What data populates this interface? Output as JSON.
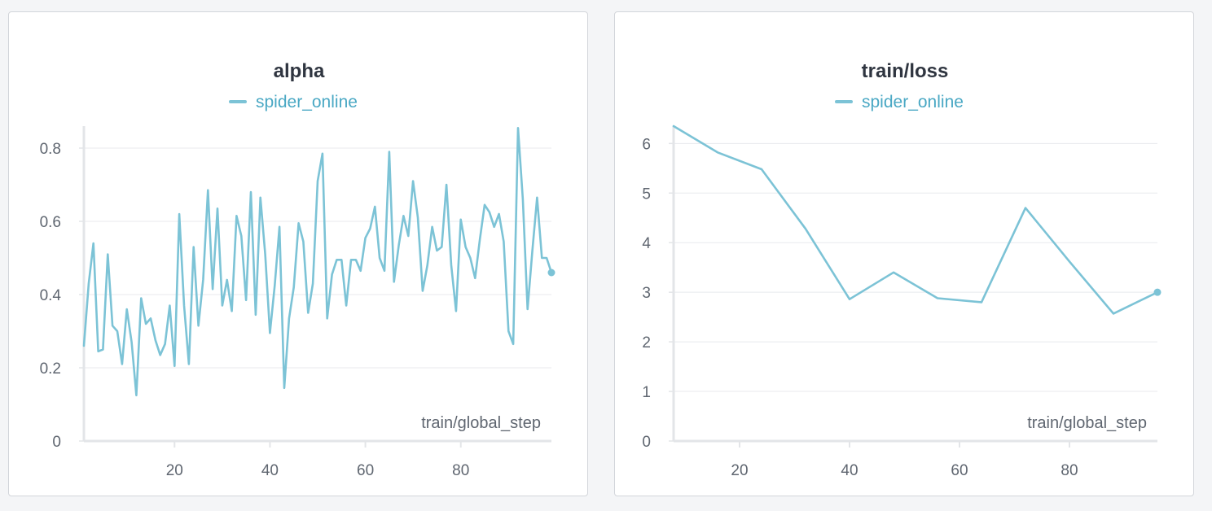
{
  "colors": {
    "series": "#7cc3d6",
    "grid": "#e8eaed",
    "axis": "#e3e5e8",
    "legend_text": "#4aa8c4"
  },
  "chart_data": [
    {
      "type": "line",
      "title": "alpha",
      "xlabel": "train/global_step",
      "ylabel": "",
      "xlim": [
        1,
        99
      ],
      "ylim": [
        0,
        0.86
      ],
      "xticks": [
        20,
        40,
        60,
        80
      ],
      "yticks": [
        0,
        0.2,
        0.4,
        0.6,
        0.8
      ],
      "ytick_labels": [
        "0",
        "0.2",
        "0.4",
        "0.6",
        "0.8"
      ],
      "grid": true,
      "legend_placement": "top-center",
      "series": [
        {
          "name": "spider_online",
          "x": [
            1,
            2,
            3,
            4,
            5,
            6,
            7,
            8,
            9,
            10,
            11,
            12,
            13,
            14,
            15,
            16,
            17,
            18,
            19,
            20,
            21,
            22,
            23,
            24,
            25,
            26,
            27,
            28,
            29,
            30,
            31,
            32,
            33,
            34,
            35,
            36,
            37,
            38,
            39,
            40,
            41,
            42,
            43,
            44,
            45,
            46,
            47,
            48,
            49,
            50,
            51,
            52,
            53,
            54,
            55,
            56,
            57,
            58,
            59,
            60,
            61,
            62,
            63,
            64,
            65,
            66,
            67,
            68,
            69,
            70,
            71,
            72,
            73,
            74,
            75,
            76,
            77,
            78,
            79,
            80,
            81,
            82,
            83,
            84,
            85,
            86,
            87,
            88,
            89,
            90,
            91,
            92,
            93,
            94,
            95,
            96,
            97,
            98,
            99
          ],
          "y": [
            0.26,
            0.43,
            0.54,
            0.245,
            0.25,
            0.51,
            0.315,
            0.3,
            0.21,
            0.36,
            0.27,
            0.125,
            0.39,
            0.32,
            0.335,
            0.275,
            0.235,
            0.265,
            0.37,
            0.205,
            0.62,
            0.37,
            0.21,
            0.53,
            0.315,
            0.44,
            0.685,
            0.415,
            0.635,
            0.37,
            0.44,
            0.355,
            0.615,
            0.56,
            0.385,
            0.68,
            0.345,
            0.665,
            0.51,
            0.295,
            0.425,
            0.585,
            0.145,
            0.335,
            0.42,
            0.595,
            0.545,
            0.35,
            0.43,
            0.71,
            0.785,
            0.335,
            0.455,
            0.495,
            0.495,
            0.37,
            0.495,
            0.495,
            0.465,
            0.555,
            0.58,
            0.64,
            0.5,
            0.465,
            0.79,
            0.435,
            0.535,
            0.615,
            0.56,
            0.71,
            0.61,
            0.41,
            0.48,
            0.585,
            0.52,
            0.53,
            0.7,
            0.48,
            0.355,
            0.605,
            0.53,
            0.5,
            0.445,
            0.55,
            0.645,
            0.625,
            0.585,
            0.62,
            0.545,
            0.3,
            0.265,
            0.855,
            0.66,
            0.36,
            0.52,
            0.665,
            0.5,
            0.5,
            0.46
          ]
        }
      ]
    },
    {
      "type": "line",
      "title": "train/loss",
      "xlabel": "train/global_step",
      "ylabel": "",
      "xlim": [
        8,
        96
      ],
      "ylim": [
        0,
        6.35
      ],
      "xticks": [
        20,
        40,
        60,
        80
      ],
      "yticks": [
        0,
        1,
        2,
        3,
        4,
        5,
        6
      ],
      "ytick_labels": [
        "0",
        "1",
        "2",
        "3",
        "4",
        "5",
        "6"
      ],
      "grid": true,
      "legend_placement": "top-center",
      "series": [
        {
          "name": "spider_online",
          "x": [
            8,
            16,
            24,
            32,
            40,
            48,
            56,
            64,
            72,
            80,
            88,
            96
          ],
          "y": [
            6.35,
            5.82,
            5.48,
            4.28,
            2.86,
            3.4,
            2.88,
            2.8,
            4.7,
            3.62,
            2.57,
            3.0
          ]
        }
      ]
    }
  ]
}
